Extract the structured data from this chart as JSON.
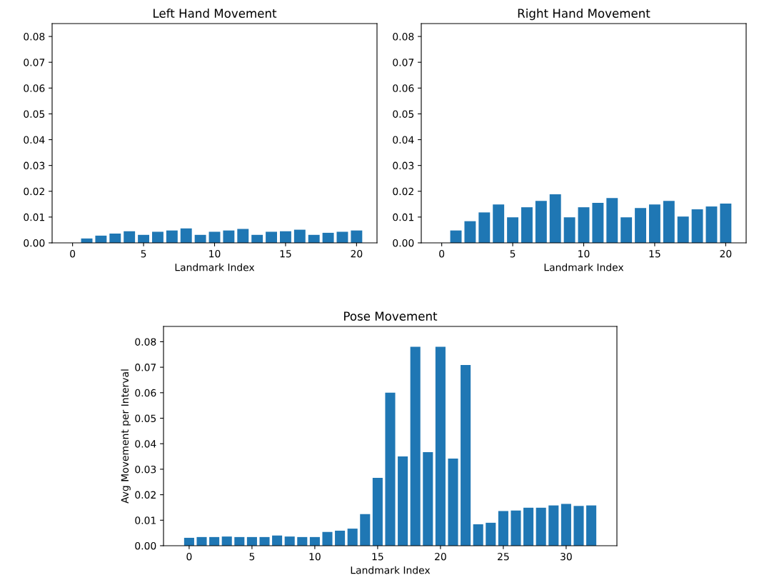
{
  "chart_data": [
    {
      "type": "bar",
      "title": "Left Hand Movement",
      "xlabel": "Landmark Index",
      "color": "#1f77b4",
      "x": [
        0,
        1,
        2,
        3,
        4,
        5,
        6,
        7,
        8,
        9,
        10,
        11,
        12,
        13,
        14,
        15,
        16,
        17,
        18,
        19,
        20
      ],
      "values": [
        0,
        0.0017,
        0.0028,
        0.0036,
        0.0045,
        0.0031,
        0.0043,
        0.0048,
        0.0056,
        0.0031,
        0.0043,
        0.0048,
        0.0054,
        0.0031,
        0.0043,
        0.0045,
        0.0051,
        0.0031,
        0.0039,
        0.0043,
        0.0048
      ],
      "xlim": [
        -1.44,
        21.44
      ],
      "xticks": [
        0,
        5,
        10,
        15,
        20
      ],
      "ylim": [
        0,
        0.085
      ],
      "yticks": [
        {
          "value": 0,
          "label": "0.00"
        },
        {
          "value": 0.01,
          "label": "0.01"
        },
        {
          "value": 0.02,
          "label": "0.02"
        },
        {
          "value": 0.03,
          "label": "0.03"
        },
        {
          "value": 0.04,
          "label": "0.04"
        },
        {
          "value": 0.05,
          "label": "0.05"
        },
        {
          "value": 0.06,
          "label": "0.06"
        },
        {
          "value": 0.07,
          "label": "0.07"
        },
        {
          "value": 0.08,
          "label": "0.08"
        }
      ],
      "grid": false,
      "legend": false
    },
    {
      "type": "bar",
      "title": "Right Hand Movement",
      "xlabel": "Landmark Index",
      "color": "#1f77b4",
      "x": [
        0,
        1,
        2,
        3,
        4,
        5,
        6,
        7,
        8,
        9,
        10,
        11,
        12,
        13,
        14,
        15,
        16,
        17,
        18,
        19,
        20
      ],
      "values": [
        0,
        0.0048,
        0.0084,
        0.0118,
        0.0149,
        0.0099,
        0.0138,
        0.0163,
        0.0188,
        0.0099,
        0.0138,
        0.0155,
        0.0174,
        0.0099,
        0.0135,
        0.0149,
        0.0163,
        0.0102,
        0.013,
        0.0141,
        0.0152
      ],
      "xlim": [
        -1.44,
        21.44
      ],
      "xticks": [
        0,
        5,
        10,
        15,
        20
      ],
      "ylim": [
        0,
        0.085
      ],
      "yticks": [
        {
          "value": 0,
          "label": "0.00"
        },
        {
          "value": 0.01,
          "label": "0.01"
        },
        {
          "value": 0.02,
          "label": "0.02"
        },
        {
          "value": 0.03,
          "label": "0.03"
        },
        {
          "value": 0.04,
          "label": "0.04"
        },
        {
          "value": 0.05,
          "label": "0.05"
        },
        {
          "value": 0.06,
          "label": "0.06"
        },
        {
          "value": 0.07,
          "label": "0.07"
        },
        {
          "value": 0.08,
          "label": "0.08"
        }
      ],
      "grid": false,
      "legend": false
    },
    {
      "type": "bar",
      "title": "Pose Movement",
      "xlabel": "Landmark Index",
      "ylabel": "Avg Movement per Interval",
      "color": "#1f77b4",
      "x": [
        0,
        1,
        2,
        3,
        4,
        5,
        6,
        7,
        8,
        9,
        10,
        11,
        12,
        13,
        14,
        15,
        16,
        17,
        18,
        19,
        20,
        21,
        22,
        23,
        24,
        25,
        26,
        27,
        28,
        29,
        30,
        31,
        32
      ],
      "values": [
        0.0031,
        0.0034,
        0.0034,
        0.0036,
        0.0034,
        0.0034,
        0.0034,
        0.004,
        0.0036,
        0.0034,
        0.0034,
        0.0054,
        0.0059,
        0.0067,
        0.0124,
        0.0266,
        0.06,
        0.035,
        0.078,
        0.0367,
        0.078,
        0.0342,
        0.0709,
        0.0084,
        0.009,
        0.0136,
        0.0138,
        0.0149,
        0.0149,
        0.0158,
        0.0164,
        0.0156,
        0.0158
      ],
      "xlim": [
        -2.04,
        34.04
      ],
      "xticks": [
        0,
        5,
        10,
        15,
        20,
        25,
        30
      ],
      "ylim": [
        0,
        0.086
      ],
      "yticks": [
        {
          "value": 0,
          "label": "0.00"
        },
        {
          "value": 0.01,
          "label": "0.01"
        },
        {
          "value": 0.02,
          "label": "0.02"
        },
        {
          "value": 0.03,
          "label": "0.03"
        },
        {
          "value": 0.04,
          "label": "0.04"
        },
        {
          "value": 0.05,
          "label": "0.05"
        },
        {
          "value": 0.06,
          "label": "0.06"
        },
        {
          "value": 0.07,
          "label": "0.07"
        },
        {
          "value": 0.08,
          "label": "0.08"
        }
      ],
      "grid": false,
      "legend": false
    }
  ]
}
